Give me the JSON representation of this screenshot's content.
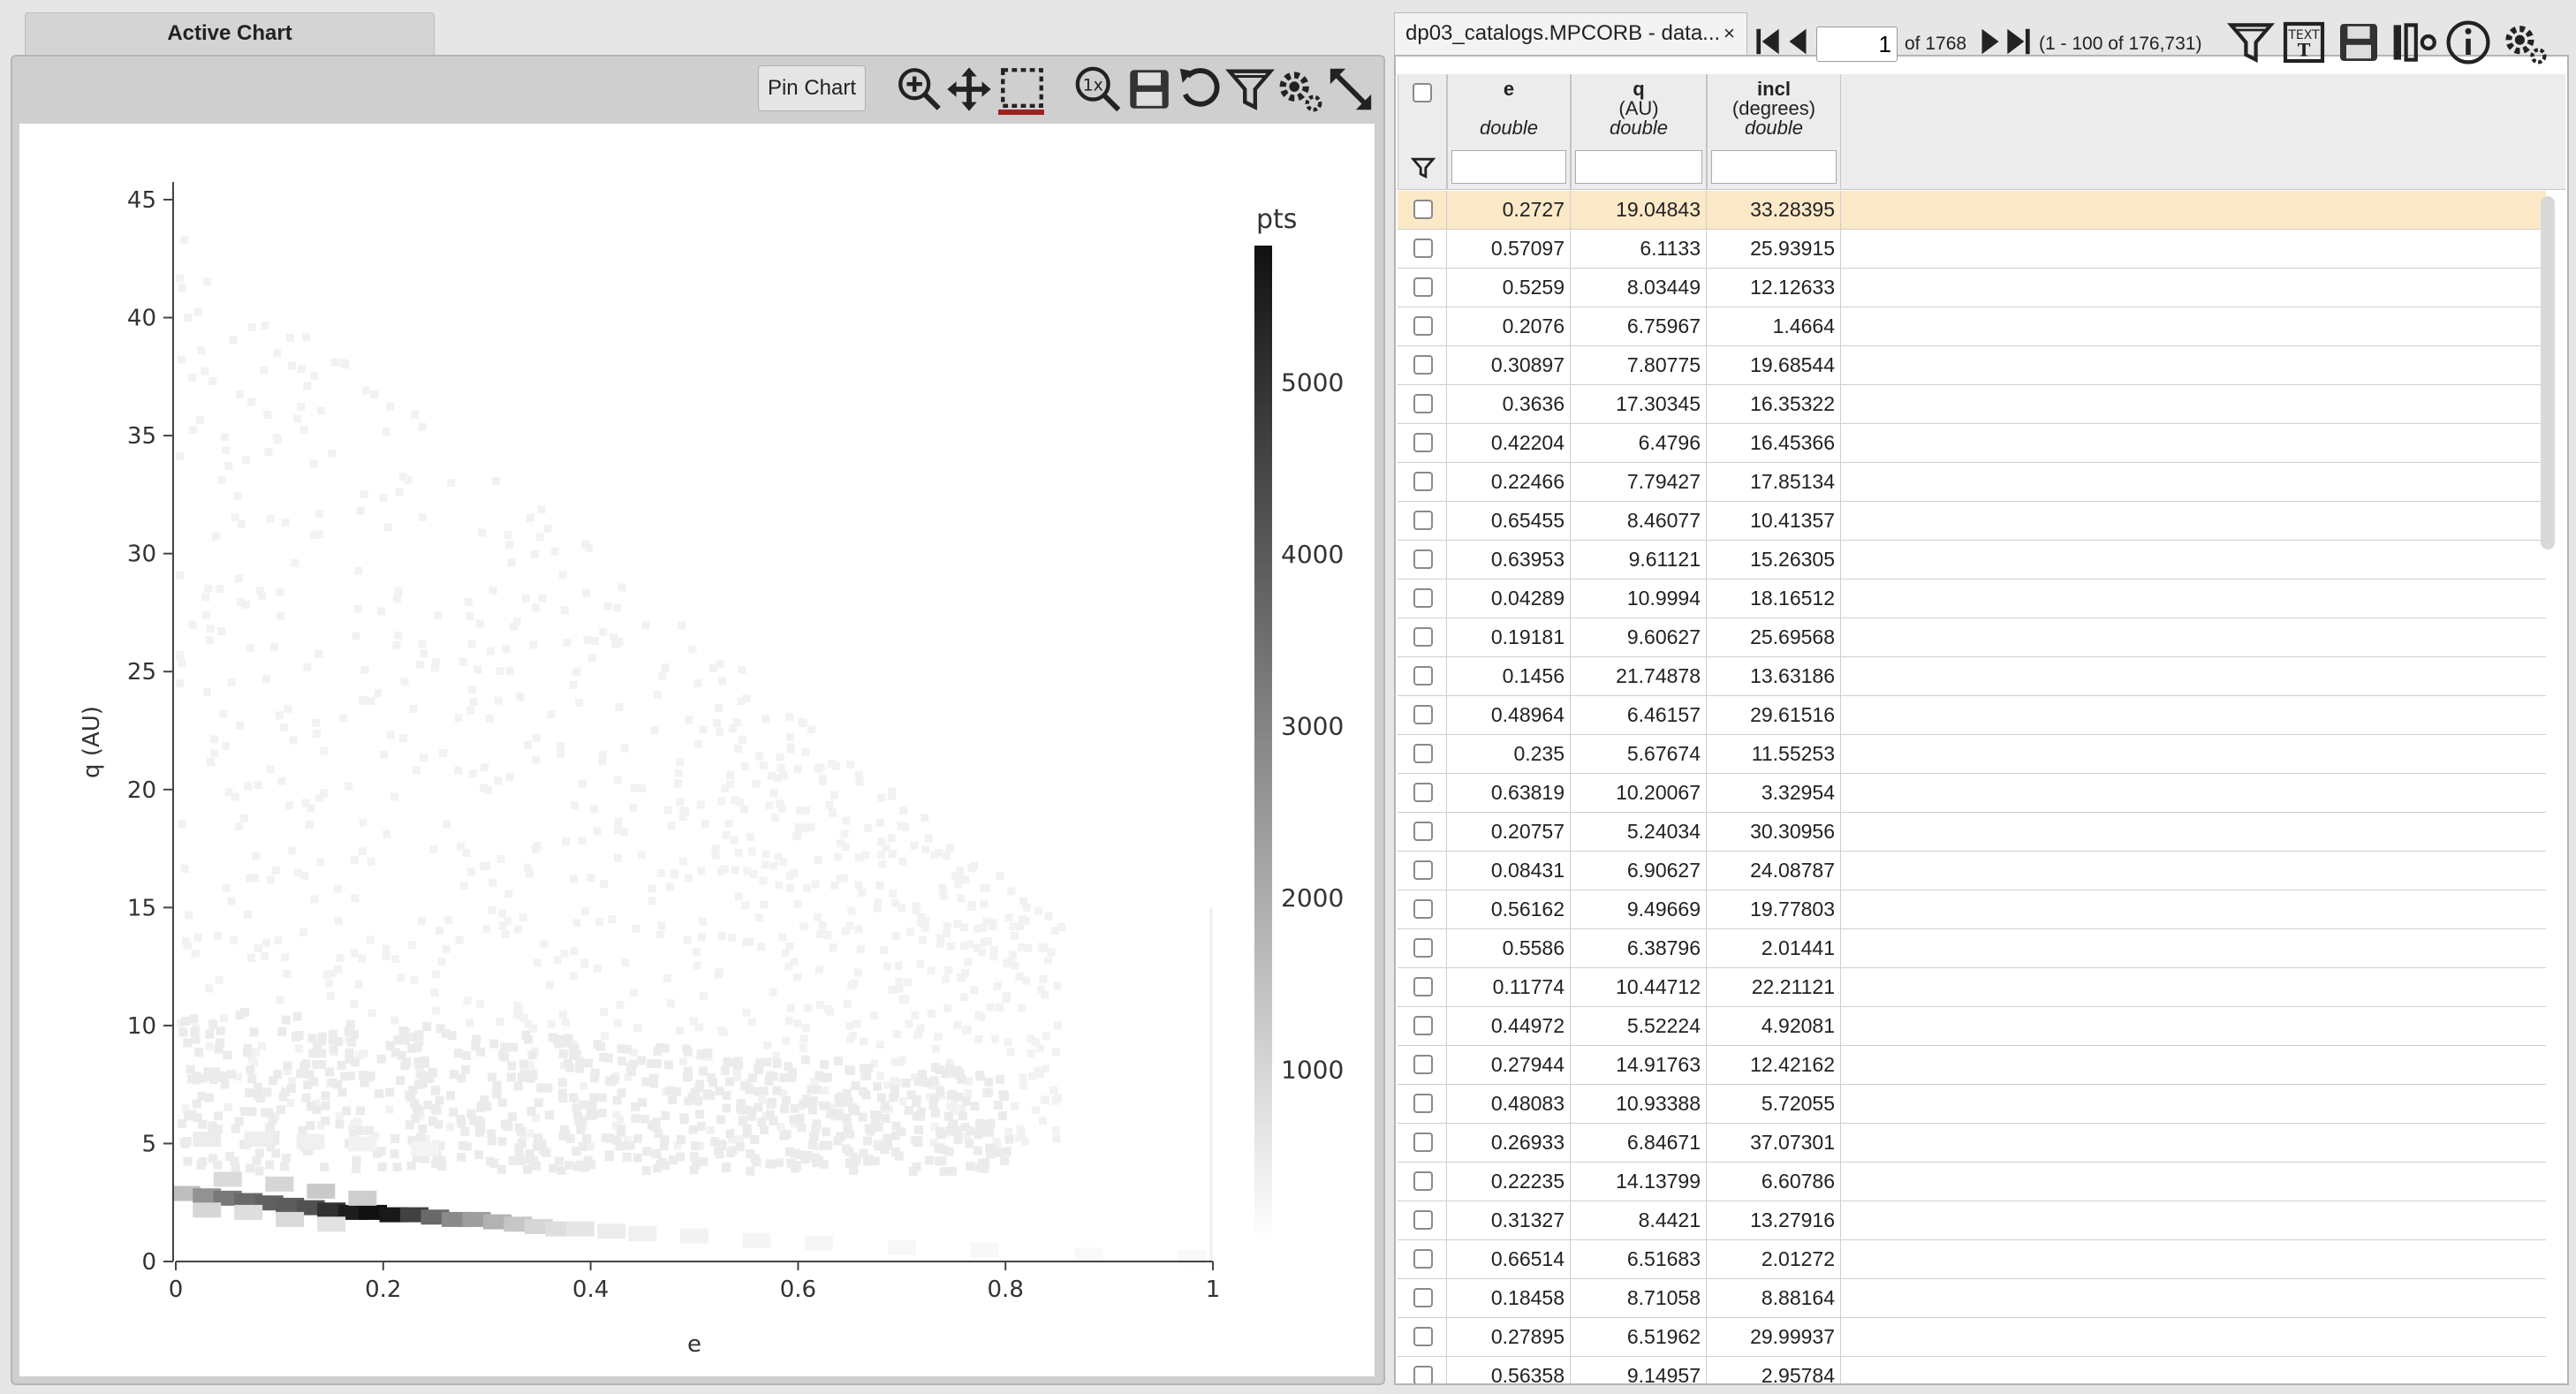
{
  "chart_panel": {
    "tab_label": "Active Chart",
    "pin_label": "Pin Chart",
    "toolbar_icons": [
      "zoom-in-icon",
      "pan-icon",
      "select-area-icon",
      "zoom-reset-icon",
      "save-icon",
      "restore-icon",
      "filter-icon",
      "settings-icon",
      "expand-icon"
    ]
  },
  "chart_data": {
    "type": "heatmap",
    "xlabel": "e",
    "ylabel": "q (AU)",
    "xlim": [
      0,
      1
    ],
    "ylim": [
      0,
      45
    ],
    "x_ticks": [
      "0",
      "0.2",
      "0.4",
      "0.6",
      "0.8",
      "1"
    ],
    "y_ticks": [
      "0",
      "5",
      "10",
      "15",
      "20",
      "25",
      "30",
      "35",
      "40",
      "45"
    ],
    "colorbar": {
      "title": "pts",
      "range": [
        0,
        5800
      ],
      "ticks": [
        "1000",
        "2000",
        "3000",
        "4000",
        "5000"
      ],
      "colormap": "white-to-black"
    },
    "grid": false,
    "cells": [
      {
        "e": 0.01,
        "q": 2.9,
        "count": 1500
      },
      {
        "e": 0.03,
        "q": 2.8,
        "count": 2600
      },
      {
        "e": 0.05,
        "q": 2.7,
        "count": 3200
      },
      {
        "e": 0.07,
        "q": 2.6,
        "count": 3600
      },
      {
        "e": 0.09,
        "q": 2.5,
        "count": 3800
      },
      {
        "e": 0.11,
        "q": 2.4,
        "count": 3900
      },
      {
        "e": 0.13,
        "q": 2.3,
        "count": 4200
      },
      {
        "e": 0.15,
        "q": 2.2,
        "count": 5000
      },
      {
        "e": 0.17,
        "q": 2.1,
        "count": 5500
      },
      {
        "e": 0.19,
        "q": 2.1,
        "count": 5800
      },
      {
        "e": 0.21,
        "q": 2.0,
        "count": 5600
      },
      {
        "e": 0.23,
        "q": 2.0,
        "count": 4600
      },
      {
        "e": 0.25,
        "q": 1.9,
        "count": 3600
      },
      {
        "e": 0.27,
        "q": 1.8,
        "count": 2800
      },
      {
        "e": 0.29,
        "q": 1.8,
        "count": 2300
      },
      {
        "e": 0.31,
        "q": 1.7,
        "count": 1800
      },
      {
        "e": 0.33,
        "q": 1.6,
        "count": 1300
      },
      {
        "e": 0.35,
        "q": 1.5,
        "count": 900
      },
      {
        "e": 0.37,
        "q": 1.4,
        "count": 700
      },
      {
        "e": 0.39,
        "q": 1.4,
        "count": 500
      },
      {
        "e": 0.42,
        "q": 1.3,
        "count": 350
      },
      {
        "e": 0.45,
        "q": 1.2,
        "count": 260
      },
      {
        "e": 0.5,
        "q": 1.1,
        "count": 180
      },
      {
        "e": 0.56,
        "q": 0.9,
        "count": 120
      },
      {
        "e": 0.62,
        "q": 0.8,
        "count": 90
      },
      {
        "e": 0.7,
        "q": 0.6,
        "count": 70
      },
      {
        "e": 0.78,
        "q": 0.5,
        "count": 50
      },
      {
        "e": 0.88,
        "q": 0.3,
        "count": 35
      },
      {
        "e": 0.98,
        "q": 0.2,
        "count": 25
      },
      {
        "e": 0.03,
        "q": 2.2,
        "count": 900
      },
      {
        "e": 0.07,
        "q": 2.1,
        "count": 700
      },
      {
        "e": 0.11,
        "q": 1.8,
        "count": 800
      },
      {
        "e": 0.15,
        "q": 1.6,
        "count": 600
      },
      {
        "e": 0.05,
        "q": 3.5,
        "count": 800
      },
      {
        "e": 0.1,
        "q": 3.3,
        "count": 900
      },
      {
        "e": 0.14,
        "q": 3.0,
        "count": 1200
      },
      {
        "e": 0.18,
        "q": 2.7,
        "count": 1100
      },
      {
        "e": 0.03,
        "q": 5.2,
        "count": 350
      },
      {
        "e": 0.08,
        "q": 5.2,
        "count": 300
      },
      {
        "e": 0.13,
        "q": 5.1,
        "count": 260
      },
      {
        "e": 0.18,
        "q": 5.0,
        "count": 200
      },
      {
        "e": 0.24,
        "q": 4.8,
        "count": 150
      }
    ]
  },
  "table": {
    "tab_title": "dp03_catalogs.MPCORB - data...",
    "close_label": "×",
    "page_value": "1",
    "page_of": "of 1768",
    "range_text": "(1 - 100 of 176,731)",
    "columns": [
      {
        "name": "e",
        "unit": "",
        "type": "double"
      },
      {
        "name": "q",
        "unit": "(AU)",
        "type": "double"
      },
      {
        "name": "incl",
        "unit": "(degrees)",
        "type": "double"
      }
    ],
    "rows": [
      [
        "0.2727",
        "19.04843",
        "33.28395"
      ],
      [
        "0.57097",
        "6.1133",
        "25.93915"
      ],
      [
        "0.5259",
        "8.03449",
        "12.12633"
      ],
      [
        "0.2076",
        "6.75967",
        "1.4664"
      ],
      [
        "0.30897",
        "7.80775",
        "19.68544"
      ],
      [
        "0.3636",
        "17.30345",
        "16.35322"
      ],
      [
        "0.42204",
        "6.4796",
        "16.45366"
      ],
      [
        "0.22466",
        "7.79427",
        "17.85134"
      ],
      [
        "0.65455",
        "8.46077",
        "10.41357"
      ],
      [
        "0.63953",
        "9.61121",
        "15.26305"
      ],
      [
        "0.04289",
        "10.9994",
        "18.16512"
      ],
      [
        "0.19181",
        "9.60627",
        "25.69568"
      ],
      [
        "0.1456",
        "21.74878",
        "13.63186"
      ],
      [
        "0.48964",
        "6.46157",
        "29.61516"
      ],
      [
        "0.235",
        "5.67674",
        "11.55253"
      ],
      [
        "0.63819",
        "10.20067",
        "3.32954"
      ],
      [
        "0.20757",
        "5.24034",
        "30.30956"
      ],
      [
        "0.08431",
        "6.90627",
        "24.08787"
      ],
      [
        "0.56162",
        "9.49669",
        "19.77803"
      ],
      [
        "0.5586",
        "6.38796",
        "2.01441"
      ],
      [
        "0.11774",
        "10.44712",
        "22.21121"
      ],
      [
        "0.44972",
        "5.52224",
        "4.92081"
      ],
      [
        "0.27944",
        "14.91763",
        "12.42162"
      ],
      [
        "0.48083",
        "10.93388",
        "5.72055"
      ],
      [
        "0.26933",
        "6.84671",
        "37.07301"
      ],
      [
        "0.22235",
        "14.13799",
        "6.60786"
      ],
      [
        "0.31327",
        "8.4421",
        "13.27916"
      ],
      [
        "0.66514",
        "6.51683",
        "2.01272"
      ],
      [
        "0.18458",
        "8.71058",
        "8.88164"
      ],
      [
        "0.27895",
        "6.51962",
        "29.99937"
      ],
      [
        "0.56358",
        "9.14957",
        "2.95784"
      ]
    ],
    "selected_row": 0,
    "toolbar_icons": [
      "filter-icon",
      "text-view-icon",
      "save-icon",
      "column-options-icon",
      "info-icon",
      "settings-icon"
    ]
  },
  "colors": {
    "selected_row": "#fbe9c8",
    "select_underline": "#a02020"
  }
}
